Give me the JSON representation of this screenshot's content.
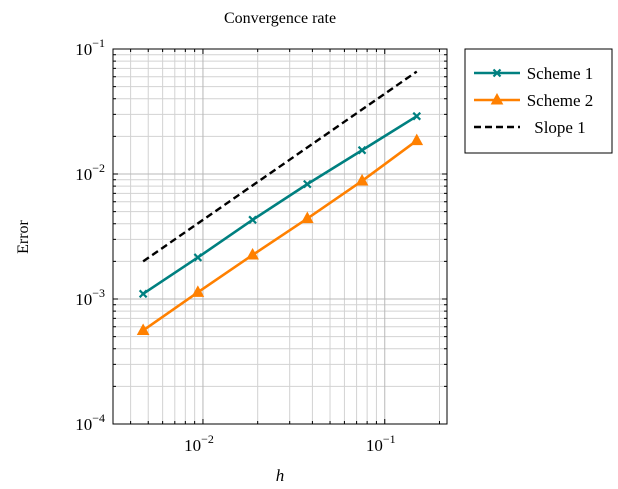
{
  "chart_data": {
    "type": "line",
    "title": "Convergence rate",
    "xlabel": "h",
    "ylabel": "Error",
    "xscale": "log",
    "yscale": "log",
    "xlim": [
      0.0032,
      0.22
    ],
    "ylim": [
      0.0001,
      0.1
    ],
    "grid": true,
    "legend_position": "outside-top-right",
    "x_ticks": [
      {
        "value": 0.01,
        "base": "10",
        "exp": "−2"
      },
      {
        "value": 0.1,
        "base": "10",
        "exp": "−1"
      }
    ],
    "y_ticks": [
      {
        "value": 0.0001,
        "base": "10",
        "exp": "−4"
      },
      {
        "value": 0.001,
        "base": "10",
        "exp": "−3"
      },
      {
        "value": 0.01,
        "base": "10",
        "exp": "−2"
      },
      {
        "value": 0.1,
        "base": "10",
        "exp": "−1"
      }
    ],
    "series": [
      {
        "name": "Scheme 1",
        "color": "#008080",
        "marker": "x",
        "dash": "solid",
        "x": [
          0.0046875,
          0.009375,
          0.01875,
          0.0375,
          0.075,
          0.15
        ],
        "y": [
          0.0011,
          0.00215,
          0.0043,
          0.0083,
          0.0155,
          0.029
        ]
      },
      {
        "name": "Scheme 2",
        "color": "#ff8000",
        "marker": "triangle",
        "dash": "solid",
        "x": [
          0.0046875,
          0.009375,
          0.01875,
          0.0375,
          0.075,
          0.15
        ],
        "y": [
          0.00056,
          0.00113,
          0.00225,
          0.0044,
          0.0088,
          0.0185
        ]
      },
      {
        "name": "Slope 1",
        "color": "#000000",
        "marker": "none",
        "dash": "dashed",
        "x": [
          0.0046875,
          0.15
        ],
        "y": [
          0.002,
          0.066
        ]
      }
    ]
  }
}
